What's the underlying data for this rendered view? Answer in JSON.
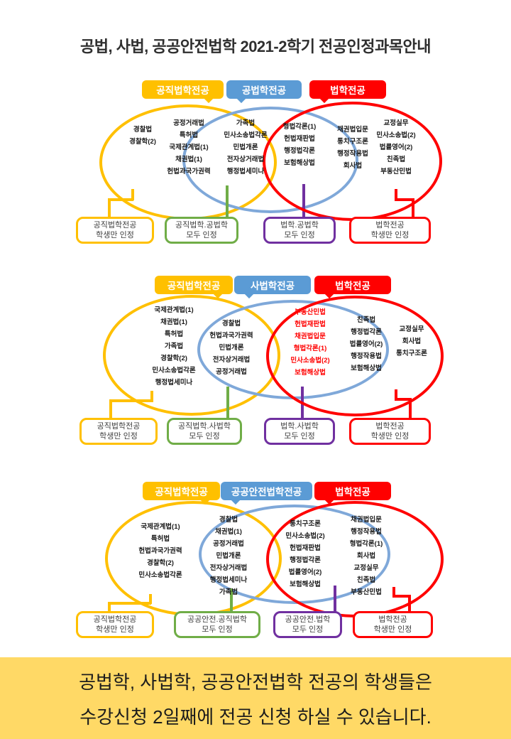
{
  "title": "공법, 사법, 공공안전법학 2021-2학기 전공인정과목안내",
  "colors": {
    "yellow": "#FFC000",
    "blue": "#5B9BD5",
    "blue_circle": "#7FA8D9",
    "red": "#FF0000",
    "green": "#70AD47",
    "purple": "#7030A0",
    "banner_bg": "#FFD966",
    "course_red": "#FF0000"
  },
  "diagrams": [
    {
      "tabs": [
        "공직법학전공",
        "공법학전공",
        "법학전공"
      ],
      "regions": {
        "yellow_only": [
          "경찰법",
          "경찰학(2)"
        ],
        "yellow_blue_col1": [
          "공정거래법",
          "특허법",
          "국제관계법(1)",
          "채권법(1)",
          "헌법과국가권력"
        ],
        "yellow_blue_col2": [
          "가족법",
          "민사소송법각론",
          "민법개론",
          "전자상거래법",
          "행정법세미나"
        ],
        "blue_red": [
          "형법각론(1)",
          "헌법재판법",
          "행정법각론",
          "보험해상법"
        ],
        "red_only_col1": [
          "채권법입문",
          "통치구조론",
          "행정작용법",
          "회사법"
        ],
        "red_only_col2": [
          "교정실무",
          "민사소송법(2)",
          "법률영어(2)",
          "친족법",
          "부동산민법"
        ]
      },
      "labels": [
        {
          "line1": "공직법학전공",
          "line2": "학생만 인정"
        },
        {
          "line1": "공직법학.공법학",
          "line2": "모두 인정"
        },
        {
          "line1": "법학.공법학",
          "line2": "모두 인정"
        },
        {
          "line1": "법학전공",
          "line2": "학생만 인정"
        }
      ]
    },
    {
      "tabs": [
        "공직법학전공",
        "사법학전공",
        "법학전공"
      ],
      "regions": {
        "yellow_only": [
          "국제관계법(1)",
          "채권법(1)",
          "특허법",
          "가족법",
          "경찰학(2)",
          "민사소송법각론",
          "행정법세미나"
        ],
        "yellow_blue": [
          "경찰법",
          "헌법과국가권력",
          "민법개론",
          "전자상거래법",
          "공정거래법"
        ],
        "blue_red_col1": [
          "부동산민법",
          "헌법재판법",
          "채권법입문",
          "형법각론(1)",
          "민사소송법(2)",
          "보험해상법"
        ],
        "blue_red_col2": [
          "친족법",
          "행정법각론",
          "법률영어(2)",
          "행정작용법",
          "보험해상법"
        ],
        "red_only": [
          "교정실무",
          "회사법",
          "통치구조론"
        ]
      },
      "labels": [
        {
          "line1": "공직법학전공",
          "line2": "학생만 인정"
        },
        {
          "line1": "공직법학.사법학",
          "line2": "모두 인정"
        },
        {
          "line1": "법학.사법학",
          "line2": "모두 인정"
        },
        {
          "line1": "법학전공",
          "line2": "학생만 인정"
        }
      ]
    },
    {
      "tabs": [
        "공직법학전공",
        "공공안전법학전공",
        "법학전공"
      ],
      "regions": {
        "yellow_only": [
          "국제관계법(1)",
          "특허법",
          "헌법과국가권력",
          "경찰학(2)",
          "민사소송법각론"
        ],
        "yellow_blue": [
          "경찰법",
          "채권법(1)",
          "공정거래법",
          "민법개론",
          "전자상거래법",
          "행정법세미나",
          "가족법"
        ],
        "blue_red": [
          "통치구조론",
          "민사소송법(2)",
          "헌법재판법",
          "행정법각론",
          "법률영어(2)",
          "보험해상법"
        ],
        "red_only": [
          "채권법입문",
          "행정작용법",
          "형법각론(1)",
          "회사법",
          "교정실무",
          "친족법",
          "부동산민법"
        ]
      },
      "labels": [
        {
          "line1": "공직법학전공",
          "line2": "학생만 인정"
        },
        {
          "line1": "공공안전.공직법학",
          "line2": "모두 인정"
        },
        {
          "line1": "공공안전.법학",
          "line2": "모두 인정"
        },
        {
          "line1": "법학전공",
          "line2": "학생만 인정"
        }
      ]
    }
  ],
  "banner": {
    "line1": "공법학, 사법학, 공공안전법학 전공의 학생들은",
    "line2": "수강신청 2일째에 전공 신청 하실 수 있습니다."
  }
}
